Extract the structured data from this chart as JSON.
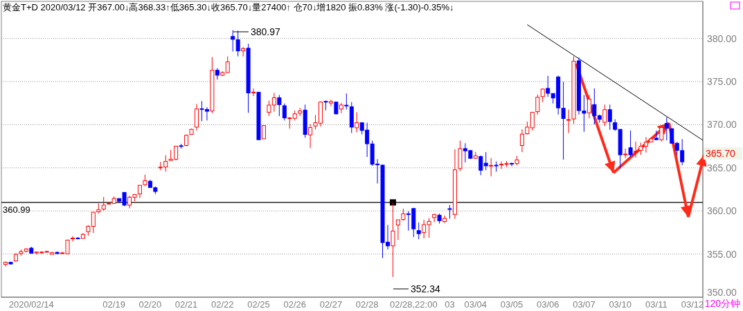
{
  "chart_data": {
    "type": "candlestick",
    "title": "黄金T+D 2020/03/12 开367.00↓高368.33↑低365.30↓收365.70↓量27400↑ 仓70↓增1820 振0.83% 涨(-1.30)-0.35%↓",
    "categories": [
      null,
      null,
      null,
      null,
      null,
      "2020/02/14",
      null,
      null,
      null,
      null,
      null,
      null,
      null,
      null,
      null,
      null,
      null,
      null,
      null,
      null,
      null,
      "02/19",
      null,
      null,
      null,
      null,
      null,
      null,
      "02/20",
      null,
      null,
      null,
      null,
      null,
      null,
      "02/21",
      null,
      null,
      null,
      null,
      null,
      null,
      "02/22",
      null,
      null,
      null,
      null,
      null,
      null,
      "02/25",
      null,
      null,
      null,
      null,
      null,
      null,
      "02/26",
      null,
      null,
      null,
      null,
      null,
      null,
      "02/27",
      null,
      null,
      null,
      null,
      null,
      null,
      "02/28",
      null,
      null,
      null,
      null,
      null,
      null,
      null,
      null,
      "02/28,22:00",
      null,
      null,
      null,
      null,
      null,
      null,
      "03",
      null,
      null,
      null,
      null,
      "03/04",
      null,
      null,
      null,
      null,
      null,
      null,
      "03/05",
      null,
      null,
      null,
      null,
      null,
      null,
      "03/06",
      null,
      null,
      null,
      null,
      null,
      null,
      "03/07",
      null,
      null,
      null,
      null,
      null,
      null,
      "03/10",
      null,
      null,
      null,
      null,
      null,
      null,
      "03/11",
      null,
      null,
      null,
      null,
      null,
      null,
      "03/12",
      null,
      null
    ],
    "ohlc": [
      [
        353.8,
        354.15,
        353.55,
        354.05
      ],
      [
        354.05,
        354.1,
        353.8,
        353.85
      ],
      [
        354.2,
        355.1,
        354.1,
        354.97
      ],
      [
        355.05,
        355.54,
        354.82,
        355.28
      ],
      [
        355.33,
        355.69,
        355.18,
        355.59
      ],
      [
        355.69,
        355.85,
        355.1,
        355.1
      ],
      [
        355.13,
        355.28,
        354.97,
        355.23
      ],
      [
        355.2,
        355.33,
        355.03,
        355.23
      ],
      [
        355.28,
        355.38,
        355.18,
        355.3
      ],
      [
        354.97,
        355.28,
        354.97,
        355.15
      ],
      [
        355.2,
        355.28,
        355.05,
        355.05
      ],
      [
        355.1,
        355.28,
        355.05,
        355.13
      ],
      [
        355.03,
        356.67,
        354.97,
        356.62
      ],
      [
        356.8,
        357.08,
        356.46,
        356.85
      ],
      [
        356.85,
        356.97,
        356.72,
        356.8
      ],
      [
        356.82,
        357.44,
        356.82,
        357.28
      ],
      [
        357.59,
        358.36,
        357.13,
        358.21
      ],
      [
        358.21,
        359.85,
        357.44,
        359.85
      ],
      [
        359.9,
        360.87,
        359.72,
        360.13
      ],
      [
        360.21,
        361.62,
        360.05,
        360.67
      ],
      [
        360.85,
        361.08,
        360.8,
        360.87
      ],
      [
        360.87,
        361.69,
        360.8,
        361.44
      ],
      [
        361.44,
        361.44,
        360.92,
        361.13
      ],
      [
        362.15,
        362.15,
        360.56,
        360.67
      ],
      [
        360.67,
        361.74,
        360.3,
        361.59
      ],
      [
        361.59,
        361.95,
        361.13,
        361.9
      ],
      [
        361.97,
        362.97,
        361.49,
        362.97
      ],
      [
        363.05,
        364.2,
        362.87,
        363.51
      ],
      [
        363.44,
        363.62,
        362.72,
        362.72
      ],
      [
        362.69,
        362.85,
        361.95,
        362.26
      ],
      [
        365.05,
        365.69,
        364.72,
        365.08
      ],
      [
        365.1,
        366.46,
        364.56,
        365.74
      ],
      [
        365.85,
        367.08,
        365.85,
        366.0
      ],
      [
        366.0,
        367.51,
        365.85,
        367.51
      ],
      [
        367.56,
        367.79,
        367.23,
        367.54
      ],
      [
        367.59,
        368.87,
        367.49,
        368.77
      ],
      [
        368.87,
        369.54,
        368.87,
        369.46
      ],
      [
        369.72,
        372.41,
        369.33,
        371.82
      ],
      [
        371.85,
        372.74,
        370.41,
        371.82
      ],
      [
        371.77,
        372.03,
        370.49,
        371.56
      ],
      [
        371.59,
        377.85,
        371.33,
        376.31
      ],
      [
        376.31,
        376.56,
        375.23,
        375.74
      ],
      [
        375.74,
        376.2,
        375.64,
        376.05
      ],
      [
        376.05,
        377.92,
        376.05,
        377.28
      ],
      [
        380.23,
        380.97,
        378.49,
        379.9
      ],
      [
        379.85,
        380.9,
        377.92,
        378.56
      ],
      [
        378.56,
        379.03,
        377.92,
        378.82
      ],
      [
        378.87,
        379.38,
        371.38,
        373.69
      ],
      [
        373.74,
        374.2,
        373.31,
        373.77
      ],
      [
        373.77,
        373.77,
        368.26,
        368.26
      ],
      [
        368.36,
        369.95,
        368.36,
        369.9
      ],
      [
        371.44,
        372.79,
        371.0,
        372.28
      ],
      [
        372.28,
        373.69,
        371.51,
        373.13
      ],
      [
        373.13,
        373.44,
        371.0,
        372.33
      ],
      [
        372.2,
        372.46,
        370.49,
        370.79
      ],
      [
        370.77,
        370.87,
        369.54,
        370.79
      ],
      [
        370.74,
        371.64,
        370.49,
        371.26
      ],
      [
        371.33,
        371.95,
        371.0,
        371.59
      ],
      [
        371.69,
        372.33,
        368.49,
        368.87
      ],
      [
        368.82,
        370.05,
        367.28,
        369.67
      ],
      [
        369.85,
        371.13,
        369.46,
        370.23
      ],
      [
        370.18,
        372.72,
        369.79,
        372.62
      ],
      [
        372.7,
        372.8,
        371.67,
        372.62
      ],
      [
        372.51,
        372.9,
        372.15,
        372.69
      ],
      [
        372.62,
        372.67,
        371.18,
        371.26
      ],
      [
        371.82,
        372.54,
        371.33,
        372.28
      ],
      [
        372.26,
        373.62,
        371.77,
        372.23
      ],
      [
        372.08,
        372.62,
        369.03,
        369.72
      ],
      [
        369.64,
        371.46,
        369.13,
        370.23
      ],
      [
        370.23,
        370.23,
        368.87,
        369.33
      ],
      [
        369.38,
        370.23,
        366.26,
        367.79
      ],
      [
        367.77,
        368.15,
        365.23,
        365.41
      ],
      [
        365.44,
        366.0,
        363.18,
        365.41
      ],
      [
        365.31,
        365.38,
        354.54,
        356.33
      ],
      [
        356.38,
        358.38,
        355.54,
        355.95
      ],
      [
        355.95,
        360.99,
        352.34,
        357.67
      ],
      [
        358.36,
        358.97,
        356.64,
        358.97
      ],
      [
        359.0,
        360.26,
        358.87,
        359.67
      ],
      [
        359.67,
        359.97,
        357.72,
        359.64
      ],
      [
        360.28,
        360.36,
        356.97,
        357.92
      ],
      [
        357.72,
        358.67,
        356.72,
        357.36
      ],
      [
        357.49,
        358.97,
        356.82,
        358.41
      ],
      [
        358.41,
        359.18,
        356.9,
        358.79
      ],
      [
        359.23,
        359.67,
        358.69,
        359.59
      ],
      [
        359.51,
        359.69,
        358.54,
        358.87
      ],
      [
        358.77,
        359.46,
        358.59,
        359.13
      ],
      [
        360.26,
        360.69,
        359.1,
        360.23
      ],
      [
        359.59,
        367.15,
        359.08,
        364.77
      ],
      [
        364.92,
        368.15,
        364.64,
        367.23
      ],
      [
        367.23,
        367.85,
        365.62,
        366.97
      ],
      [
        367.0,
        367.05,
        366.05,
        366.1
      ],
      [
        366.1,
        366.85,
        366.03,
        366.38
      ],
      [
        366.31,
        366.44,
        364.15,
        364.72
      ],
      [
        365.54,
        366.82,
        364.72,
        365.23
      ],
      [
        365.26,
        366.13,
        364.0,
        365.28
      ],
      [
        365.3,
        365.74,
        364.56,
        365.28
      ],
      [
        365.38,
        365.74,
        364.87,
        365.41
      ],
      [
        365.46,
        365.79,
        365.1,
        365.49
      ],
      [
        365.51,
        365.62,
        365.18,
        365.49
      ],
      [
        365.49,
        366.38,
        365.31,
        365.92
      ],
      [
        367.59,
        369.46,
        366.82,
        368.9
      ],
      [
        368.95,
        370.36,
        368.87,
        369.72
      ],
      [
        369.64,
        371.44,
        369.33,
        371.44
      ],
      [
        371.51,
        373.51,
        371.18,
        373.18
      ],
      [
        373.26,
        374.21,
        372.62,
        374.13
      ],
      [
        374.21,
        375.67,
        373.23,
        373.64
      ],
      [
        373.62,
        373.62,
        372.46,
        373.1
      ],
      [
        375.54,
        375.69,
        371.18,
        371.95
      ],
      [
        371.9,
        374.97,
        365.95,
        370.72
      ],
      [
        370.56,
        371.74,
        369.03,
        370.59
      ],
      [
        370.67,
        377.92,
        370.1,
        377.36
      ],
      [
        377.41,
        377.79,
        371.18,
        371.64
      ],
      [
        371.59,
        373.44,
        369.18,
        371.33
      ],
      [
        371.38,
        373.44,
        370.74,
        372.97
      ],
      [
        372.33,
        374.21,
        370.03,
        371.05
      ],
      [
        371.05,
        371.18,
        370.23,
        370.62
      ],
      [
        370.28,
        372.33,
        369.85,
        371.74
      ],
      [
        371.74,
        372.33,
        369.41,
        370.36
      ],
      [
        370.23,
        370.62,
        369.28,
        369.46
      ],
      [
        369.46,
        369.46,
        364.92,
        366.51
      ],
      [
        366.56,
        367.23,
        366.13,
        366.59
      ],
      [
        367.33,
        369.33,
        366.26,
        366.51
      ],
      [
        366.87,
        368.05,
        366.18,
        366.9
      ],
      [
        367.03,
        367.92,
        366.51,
        367.49
      ],
      [
        367.49,
        368.56,
        366.77,
        367.97
      ],
      [
        368.0,
        368.44,
        367.95,
        368.36
      ],
      [
        368.44,
        369.33,
        368.26,
        368.26
      ],
      [
        368.26,
        369.67,
        368.05,
        369.67
      ],
      [
        370.15,
        370.87,
        368.18,
        369.59
      ],
      [
        369.54,
        369.59,
        367.85,
        367.85
      ],
      [
        367.85,
        368.0,
        366.46,
        367.03
      ],
      [
        367.0,
        368.33,
        365.3,
        365.7
      ],
      null,
      null,
      null,
      null
    ],
    "series": [
      {
        "type": "line",
        "color": "#000000",
        "values": [
          null,
          null,
          null,
          null,
          null,
          null,
          null,
          null,
          null,
          null,
          null,
          null,
          null,
          null,
          null,
          null,
          null,
          null,
          null,
          null,
          null,
          null,
          null,
          null,
          null,
          null,
          null,
          null,
          null,
          null,
          null,
          null,
          null,
          null,
          null,
          null,
          null,
          null,
          null,
          null,
          null,
          null,
          null,
          null,
          null,
          null,
          null,
          null,
          null,
          null,
          null,
          null,
          null,
          null,
          null,
          null,
          null,
          null,
          null,
          null,
          null,
          null,
          null,
          null,
          null,
          null,
          null,
          null,
          null,
          null,
          null,
          null,
          null,
          null,
          null,
          null,
          null,
          null,
          null,
          null,
          null,
          null,
          null,
          null,
          null,
          null,
          null,
          null,
          null,
          null,
          null,
          null,
          null,
          null,
          null,
          null,
          null,
          null,
          null,
          null,
          null,
          381.6,
          null,
          null,
          null,
          null,
          null,
          null,
          null,
          null,
          null,
          null,
          null,
          null,
          null,
          null,
          null,
          null,
          null,
          null,
          null,
          null,
          null,
          null,
          null,
          null,
          null,
          null,
          null,
          null,
          null,
          null,
          null,
          null,
          null,
          368.2
        ]
      }
    ],
    "ylim": [
      350,
      384.3
    ],
    "yticks": [
      {
        "value": 350,
        "label": "350.00"
      },
      {
        "value": 355,
        "label": "355.00"
      },
      {
        "value": 360,
        "label": "360.00"
      },
      {
        "value": 365,
        "label": "365.00"
      },
      {
        "value": 370,
        "label": "370.00"
      },
      {
        "value": 375,
        "label": "375.00"
      },
      {
        "value": 380,
        "label": "380.00"
      }
    ],
    "grid": "y",
    "ref_lines": [
      {
        "axis": "y",
        "value": 360.99,
        "label": "360.99",
        "color": "#000000"
      }
    ],
    "annotations": [
      "380.97",
      "352.34",
      "365.70",
      "120分钟"
    ]
  }
}
